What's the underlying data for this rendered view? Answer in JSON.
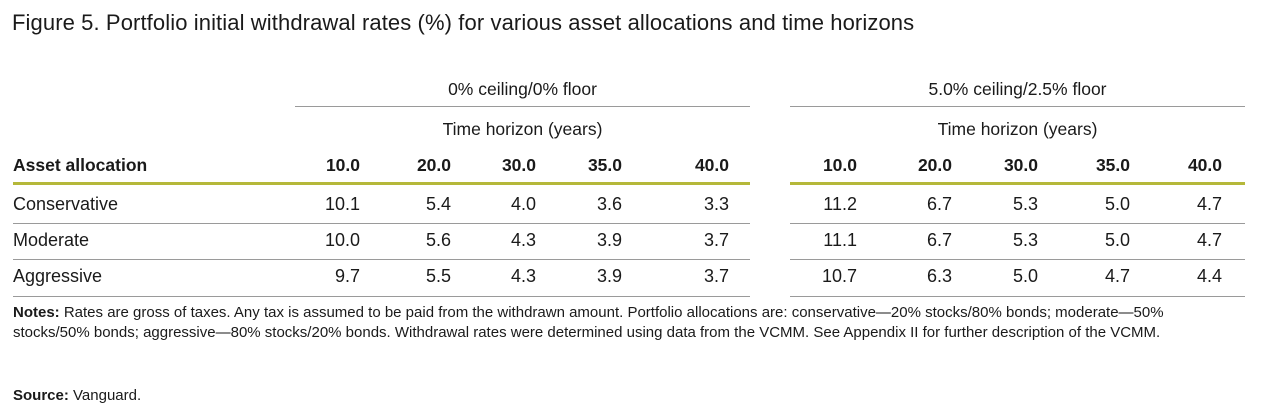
{
  "title": "Figure 5. Portfolio initial withdrawal rates (%) for various asset allocations and time horizons",
  "groups": [
    {
      "title": "0% ceiling/0% floor",
      "subtitle": "Time horizon (years)"
    },
    {
      "title": "5.0% ceiling/2.5% floor",
      "subtitle": "Time horizon (years)"
    }
  ],
  "header": {
    "row_label": "Asset allocation",
    "g1": [
      "10.0",
      "20.0",
      "30.0",
      "35.0",
      "40.0"
    ],
    "g2": [
      "10.0",
      "20.0",
      "30.0",
      "35.0",
      "40.0"
    ]
  },
  "rows": [
    {
      "label": "Conservative",
      "g1": [
        "10.1",
        "5.4",
        "4.0",
        "3.6",
        "3.3"
      ],
      "g2": [
        "11.2",
        "6.7",
        "5.3",
        "5.0",
        "4.7"
      ]
    },
    {
      "label": "Moderate",
      "g1": [
        "10.0",
        "5.6",
        "4.3",
        "3.9",
        "3.7"
      ],
      "g2": [
        "11.1",
        "6.7",
        "5.3",
        "5.0",
        "4.7"
      ]
    },
    {
      "label": "Aggressive",
      "g1": [
        "9.7",
        "5.5",
        "4.3",
        "3.9",
        "3.7"
      ],
      "g2": [
        "10.7",
        "6.3",
        "5.0",
        "4.7",
        "4.4"
      ]
    }
  ],
  "notes": {
    "label": "Notes:",
    "text": "Rates are gross of taxes. Any tax is assumed to be paid from the withdrawn amount. Portfolio allocations are: conservative—20% stocks/80% bonds; moderate—50% stocks/50% bonds; aggressive—80% stocks/20% bonds. Withdrawal rates were determined using data from the VCMM. See Appendix II for further description of the VCMM."
  },
  "source": {
    "label": "Source:",
    "text": "Vanguard."
  },
  "colors": {
    "accent_rule": "#b5b83a",
    "rule": "#9a9a9a",
    "text": "#1a1a1a"
  }
}
